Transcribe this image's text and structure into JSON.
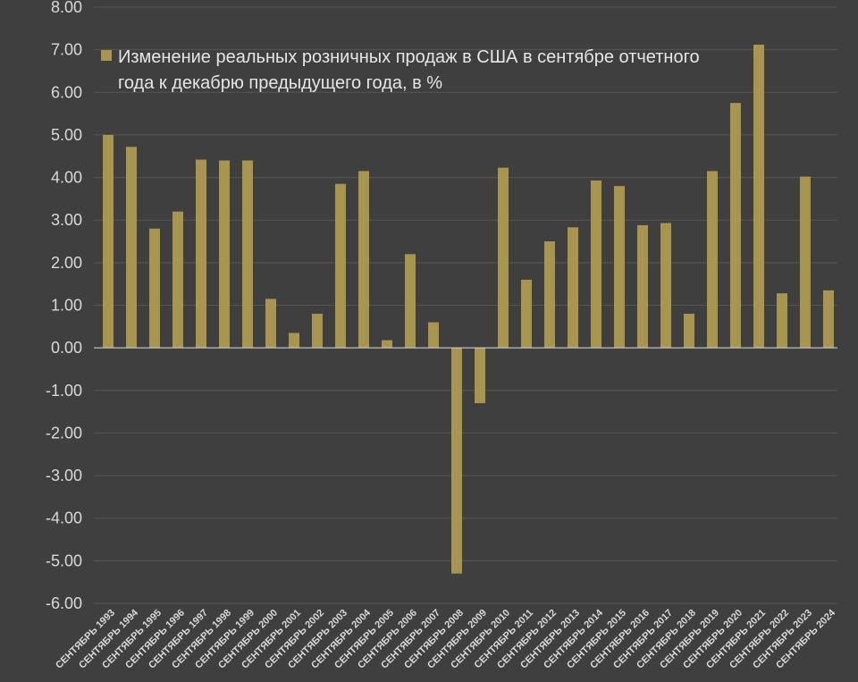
{
  "chart_data": {
    "type": "bar",
    "title": "",
    "xlabel": "",
    "ylabel": "",
    "ylim": [
      -6,
      8
    ],
    "ytick_labels": [
      "8.00",
      "7.00",
      "6.00",
      "5.00",
      "4.00",
      "3.00",
      "2.00",
      "1.00",
      "0.00",
      "-1.00",
      "-2.00",
      "-3.00",
      "-4.00",
      "-5.00",
      "-6.00"
    ],
    "grid": true,
    "legend_position": "top-left",
    "categories": [
      "СЕНТЯБРЬ 1993",
      "СЕНТЯБРЬ 1994",
      "СЕНТЯБРЬ 1995",
      "СЕНТЯБРЬ 1996",
      "СЕНТЯБРЬ 1997",
      "СЕНТЯБРЬ 1998",
      "СЕНТЯБРЬ 1999",
      "СЕНТЯБРЬ 2000",
      "СЕНТЯБРЬ 2001",
      "СЕНТЯБРЬ 2002",
      "СЕНТЯБРЬ 2003",
      "СЕНТЯБРЬ 2004",
      "СЕНТЯБРЬ 2005",
      "СЕНТЯБРЬ 2006",
      "СЕНТЯБРЬ 2007",
      "СЕНТЯБРЬ 2008",
      "СЕНТЯБРЬ 2009",
      "СЕНТЯБРЬ 2010",
      "СЕНТЯБРЬ 2011",
      "СЕНТЯБРЬ 2012",
      "СЕНТЯБРЬ 2013",
      "СЕНТЯБРЬ 2014",
      "СЕНТЯБРЬ 2015",
      "СЕНТЯБРЬ 2016",
      "СЕНТЯБРЬ 2017",
      "СЕНТЯБРЬ 2018",
      "СЕНТЯБРЬ 2019",
      "СЕНТЯБРЬ 2020",
      "СЕНТЯБРЬ 2021",
      "СЕНТЯБРЬ 2022",
      "СЕНТЯБРЬ 2023",
      "СЕНТЯБРЬ 2024"
    ],
    "series": [
      {
        "name": "Изменение реальных розничных продаж в США в сентябре отчетного года к декабрю предыдущего года, в %",
        "name_lines": [
          "Изменение реальных розничных продаж в США в сентябре отчетного",
          "года к декабрю предыдущего года, в %"
        ],
        "color": "#a8954f",
        "values": [
          5.0,
          4.72,
          2.8,
          3.2,
          4.42,
          4.4,
          4.4,
          1.15,
          0.35,
          0.8,
          3.85,
          4.15,
          0.18,
          2.2,
          0.6,
          -5.3,
          -1.3,
          4.23,
          1.6,
          2.5,
          2.83,
          3.93,
          3.8,
          2.88,
          2.93,
          0.8,
          4.15,
          5.75,
          7.12,
          1.28,
          4.02,
          1.35
        ]
      }
    ],
    "colors": {
      "background": "#3f3f3f",
      "grid": "#575757",
      "bar": "#a8954f",
      "zero_line": "#d9d9d9",
      "text": "#d9d9d9"
    }
  }
}
